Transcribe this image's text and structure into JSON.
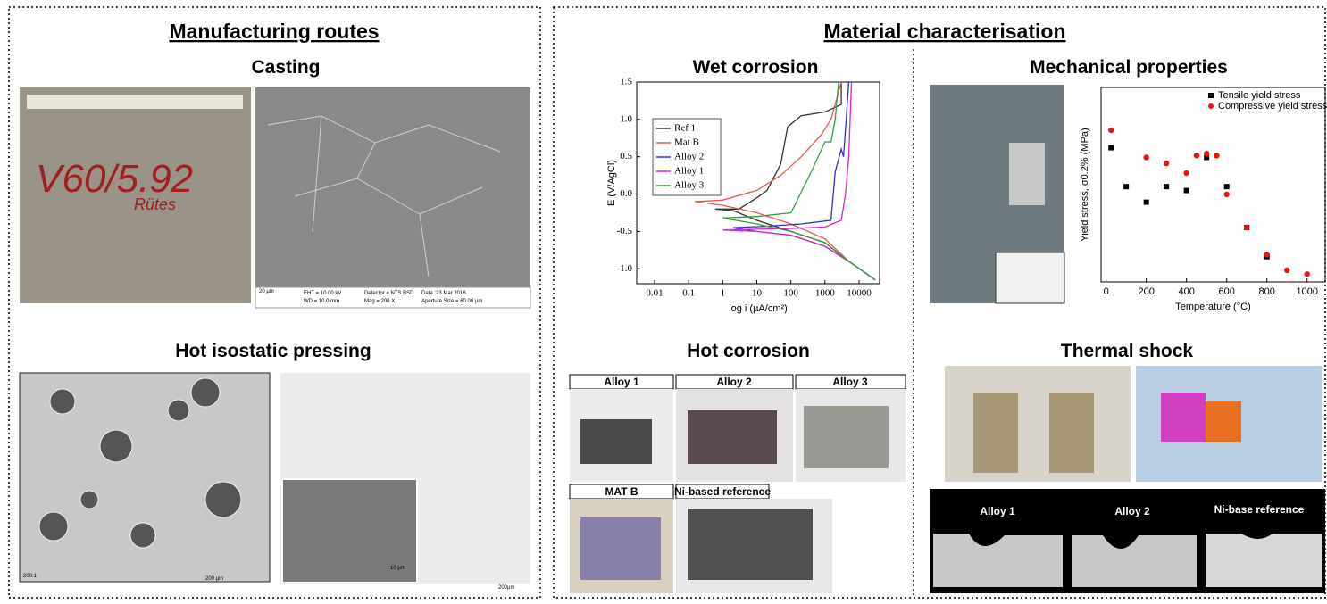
{
  "left": {
    "title": "Manufacturing routes",
    "casting": {
      "title": "Casting",
      "handwriting": [
        "V60/5.92",
        "Rütes"
      ],
      "scale": "20 µm",
      "sem_info": [
        "EHT = 10.00 kV",
        "WD = 10.0 mm",
        "Detector = NTS BSD",
        "Mag = 200 X",
        "Date :23 Mar 2016",
        "Aperture Size = 60.00 µm"
      ]
    },
    "hip": {
      "title": "Hot isostatic pressing",
      "labels": [
        "200:1",
        "200 µm",
        "10 µm",
        "200µm"
      ]
    }
  },
  "right": {
    "title": "Material characterisation",
    "wet_corrosion": {
      "title": "Wet corrosion"
    },
    "mechanical": {
      "title": "Mechanical properties"
    },
    "hot_corrosion": {
      "title": "Hot corrosion",
      "samples": [
        "Alloy 1",
        "Alloy 2",
        "Alloy 3",
        "MAT B",
        "Ni-based reference"
      ]
    },
    "thermal_shock": {
      "title": "Thermal shock",
      "samples": [
        "Alloy 1",
        "Alloy 2",
        "Ni-base reference"
      ]
    }
  },
  "chart_data": [
    {
      "type": "line",
      "x_label": "log i (µA/cm²)",
      "y_label": "E (V/AgCl)",
      "log_x": true,
      "xlim": [
        0.003,
        40000
      ],
      "xticks": [
        0.01,
        0.1,
        1,
        10,
        100,
        1000,
        10000
      ],
      "ylim": [
        -1.2,
        1.5
      ],
      "yticks": [
        {
          "value": -1,
          "label": "-1.0"
        },
        -0.5,
        {
          "value": 0,
          "label": "0.0"
        },
        0.5,
        {
          "value": 1,
          "label": "1.0"
        },
        1.5
      ],
      "legend": "upper left",
      "series": [
        {
          "name": "Ref 1",
          "color": "#333333",
          "x": [
            30000,
            5000,
            1000,
            100,
            10,
            2,
            0.6,
            3,
            10,
            20,
            50,
            80,
            200,
            1000,
            3000,
            3000
          ],
          "values": [
            -1.15,
            -0.9,
            -0.65,
            -0.5,
            -0.35,
            -0.22,
            -0.2,
            -0.2,
            -0.05,
            0.05,
            0.4,
            0.9,
            1.05,
            1.1,
            1.2,
            1.5
          ]
        },
        {
          "name": "Mat B",
          "color": "#e8584f",
          "x": [
            30000,
            5000,
            1000,
            100,
            10,
            1,
            0.15,
            1,
            10,
            50,
            200,
            800,
            1500,
            3000
          ],
          "values": [
            -1.15,
            -0.9,
            -0.6,
            -0.4,
            -0.25,
            -0.15,
            -0.1,
            -0.08,
            0.05,
            0.25,
            0.5,
            0.8,
            1.0,
            1.5
          ]
        },
        {
          "name": "Alloy 2",
          "color": "#3030d0",
          "x": [
            30000,
            5000,
            1000,
            100,
            10,
            2,
            20,
            200,
            1500,
            2000,
            3000,
            3500,
            5000
          ],
          "values": [
            -1.15,
            -0.9,
            -0.7,
            -0.55,
            -0.5,
            -0.45,
            -0.43,
            -0.4,
            -0.35,
            0.3,
            0.6,
            0.5,
            1.5
          ]
        },
        {
          "name": "Alloy 1",
          "color": "#e020d0",
          "x": [
            30000,
            5000,
            1000,
            100,
            10,
            1,
            10,
            100,
            1000,
            3000,
            4000,
            5000,
            6000
          ],
          "values": [
            -1.15,
            -0.9,
            -0.7,
            -0.55,
            -0.5,
            -0.48,
            -0.47,
            -0.46,
            -0.44,
            -0.35,
            0.0,
            0.5,
            1.5
          ]
        },
        {
          "name": "Alloy 3",
          "color": "#30a040",
          "x": [
            30000,
            5000,
            1000,
            100,
            10,
            1,
            10,
            100,
            400,
            1000,
            1500,
            2000,
            2500
          ],
          "values": [
            -1.15,
            -0.9,
            -0.65,
            -0.5,
            -0.4,
            -0.32,
            -0.3,
            -0.25,
            0.3,
            0.7,
            0.7,
            1.0,
            1.5
          ]
        }
      ]
    },
    {
      "type": "scatter",
      "x_label": "Temperature (°C)",
      "y_label": "Yield stress, σ0.2% (MPa)",
      "xlim": [
        -25,
        1090
      ],
      "xticks": [
        0,
        200,
        400,
        600,
        800,
        1000
      ],
      "ylim": [
        0,
        100
      ],
      "legend": "upper right",
      "series": [
        {
          "name": "Tensile yield stress",
          "color": "#000000",
          "marker": "square",
          "x": [
            25,
            100,
            200,
            300,
            400,
            500,
            600,
            700,
            800
          ],
          "values": [
            69,
            49,
            41,
            49,
            47,
            64,
            49,
            28,
            13
          ]
        },
        {
          "name": "Compressive yield stress",
          "color": "#ee1111",
          "marker": "circle",
          "x": [
            25,
            200,
            300,
            400,
            450,
            500,
            550,
            600,
            700,
            800,
            900,
            1000
          ],
          "values": [
            78,
            64,
            61,
            56,
            65,
            66,
            65,
            45,
            28,
            14,
            6,
            4
          ]
        }
      ]
    }
  ]
}
